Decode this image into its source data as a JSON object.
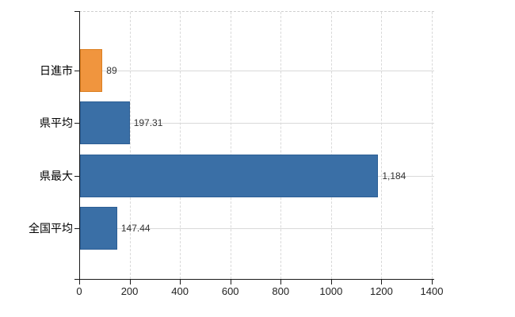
{
  "chart_data": {
    "type": "bar",
    "orientation": "horizontal",
    "title": "",
    "categories": [
      "日進市",
      "県平均",
      "県最大",
      "全国平均"
    ],
    "values": [
      89,
      197.31,
      1184,
      147.44
    ],
    "value_labels": [
      "89",
      "197.31",
      "1,184",
      "147.44"
    ],
    "bar_fill_colors": [
      "#F0953E",
      "#3A6FA6",
      "#3A6FA6",
      "#3A6FA6"
    ],
    "bar_border_colors": [
      "#DB7E20",
      "#2D5F95",
      "#2D5F95",
      "#2D5F95"
    ],
    "xlim": [
      0,
      1400
    ],
    "x_ticks": [
      0,
      200,
      400,
      600,
      800,
      1000,
      1200,
      1400
    ],
    "x_tick_labels": [
      "0",
      "200",
      "400",
      "600",
      "800",
      "1000",
      "1200",
      "1400"
    ],
    "grid": {
      "vertical_style": "dashed",
      "horizontal_style": "solid",
      "color": "#D9D9D9"
    },
    "legend": false,
    "axis_color": "#1A1A1A",
    "background_color": "#FFFFFF"
  }
}
